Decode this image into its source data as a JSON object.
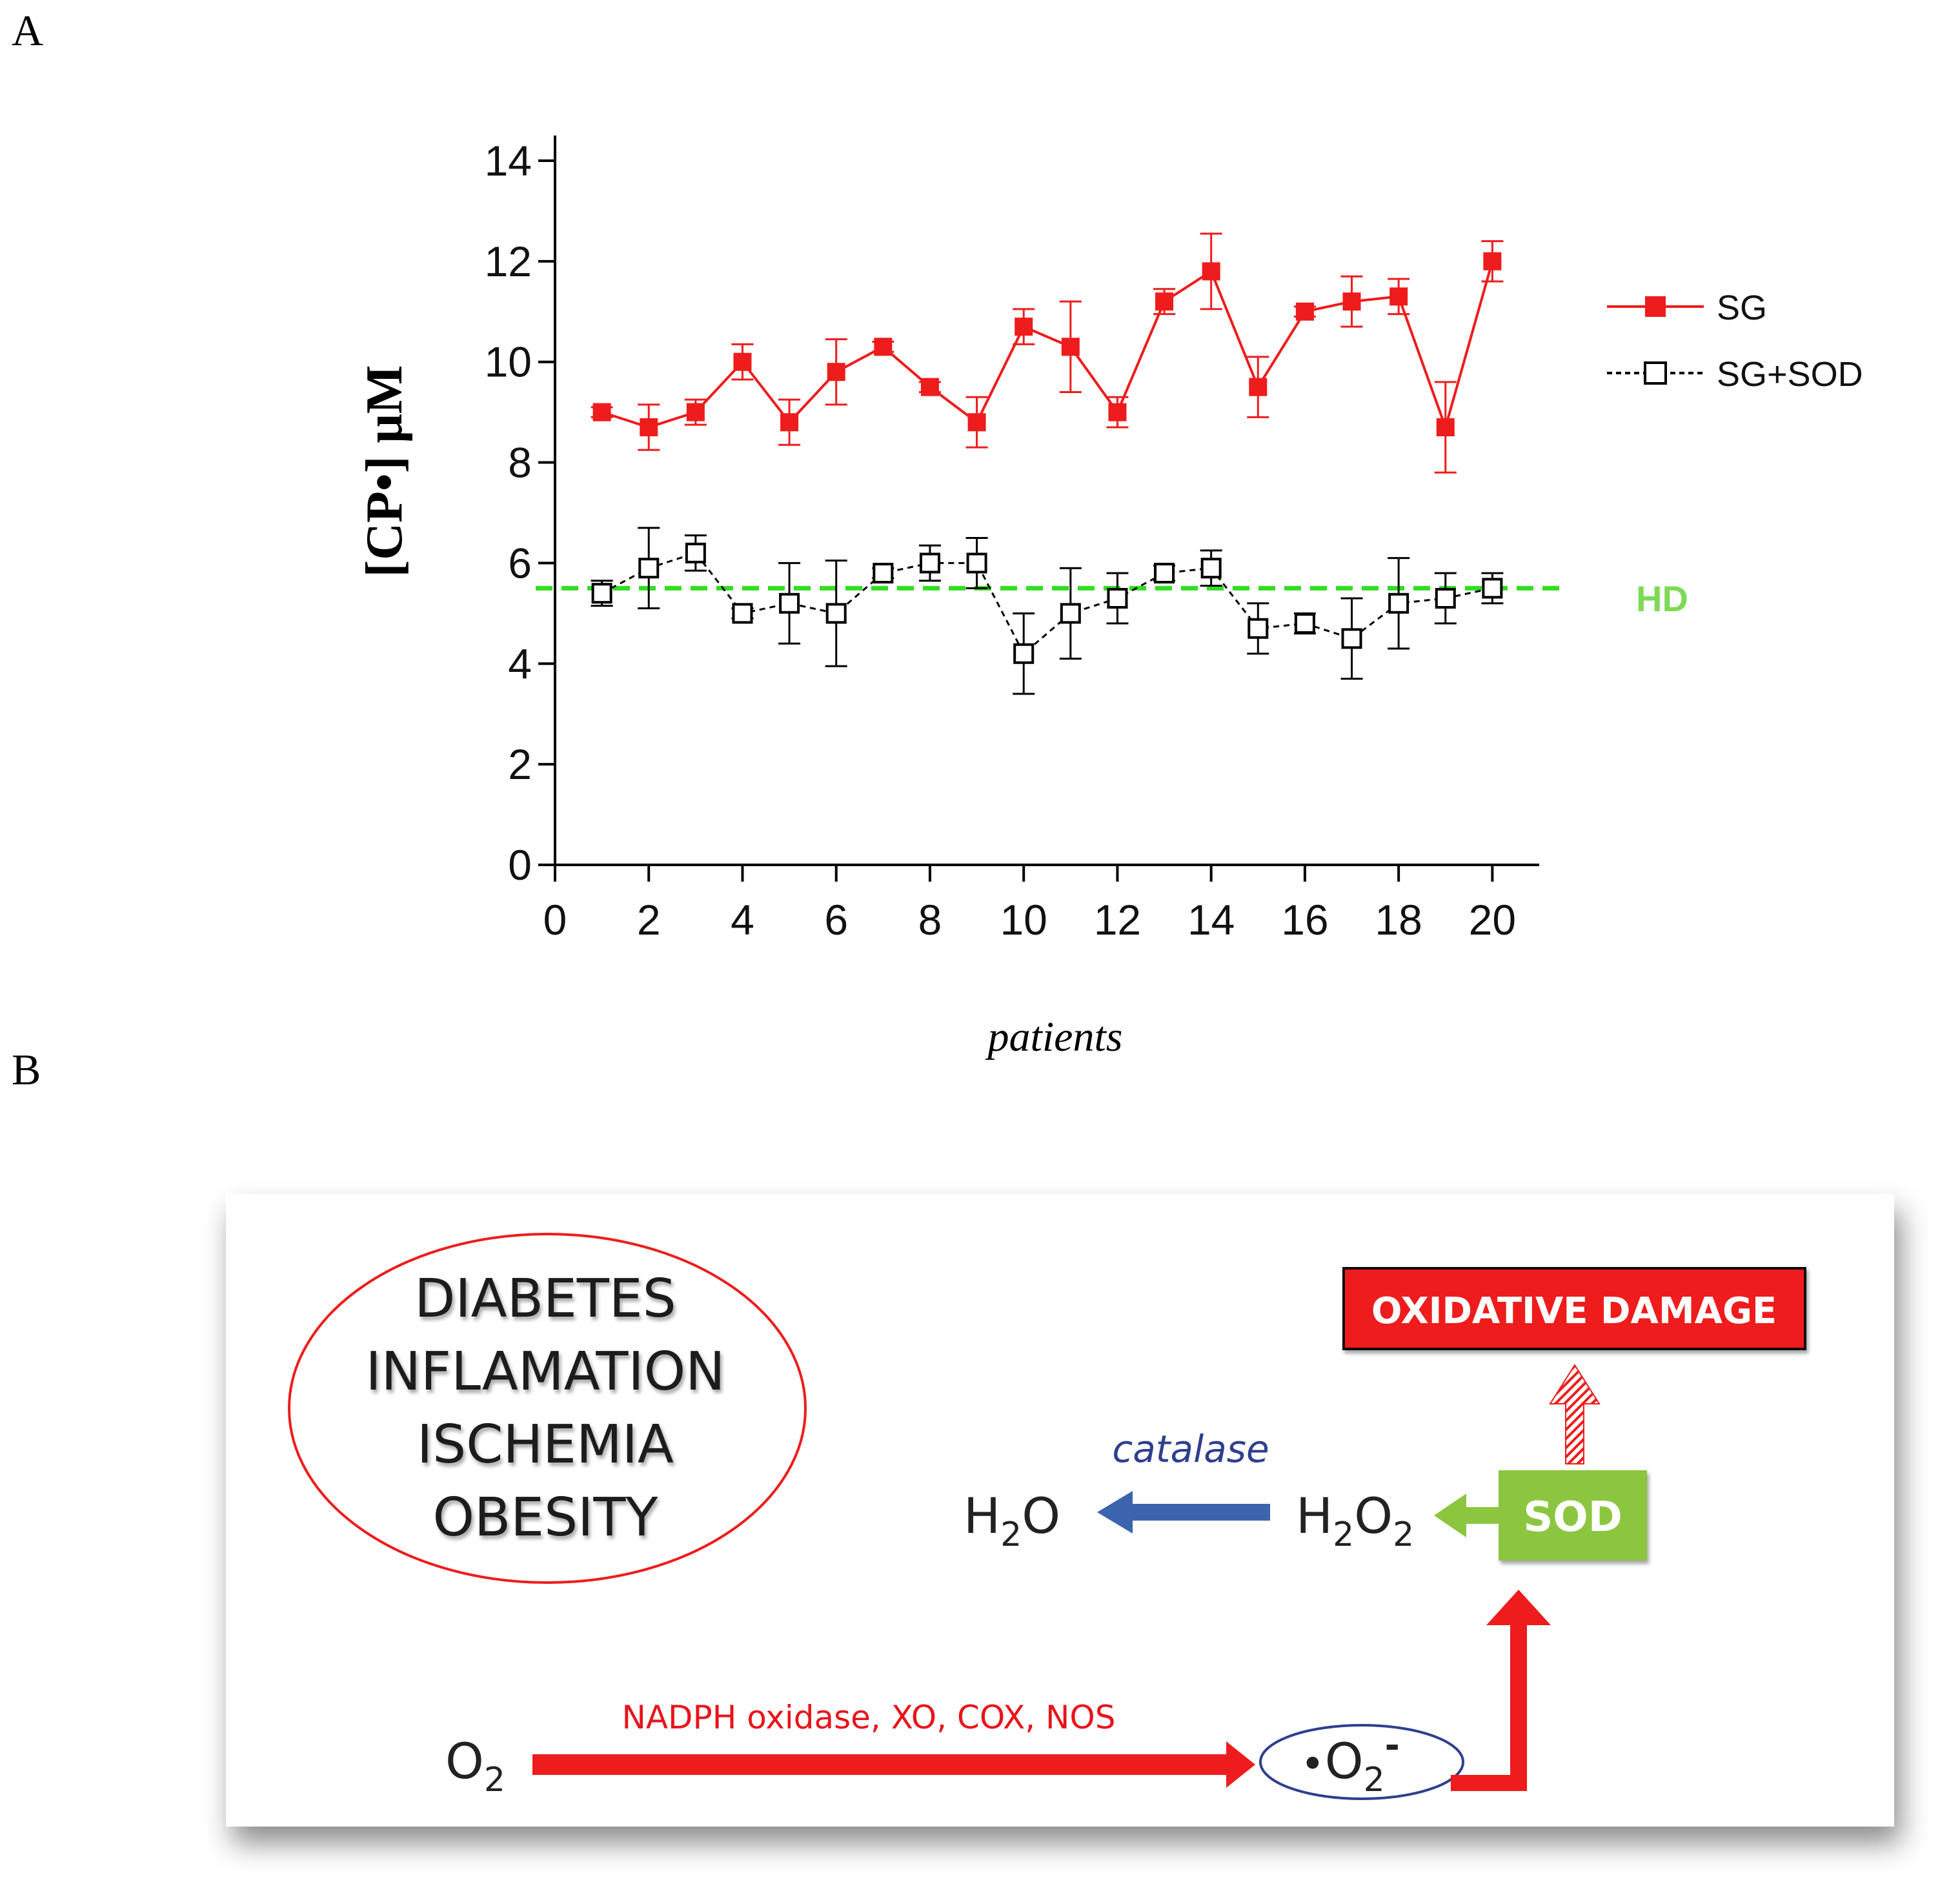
{
  "panels": {
    "a_label": "A",
    "b_label": "B"
  },
  "chart_data": {
    "type": "line",
    "xlabel": "patients",
    "ylabel": "[CP•] μM",
    "xlim": [
      0,
      21
    ],
    "ylim": [
      0,
      14.5
    ],
    "xticks": [
      0,
      2,
      4,
      6,
      8,
      10,
      12,
      14,
      16,
      18,
      20
    ],
    "yticks": [
      0,
      2,
      4,
      6,
      8,
      10,
      12,
      14
    ],
    "legend_position": "right",
    "grid": false,
    "x": [
      1,
      2,
      3,
      4,
      5,
      6,
      7,
      8,
      9,
      10,
      11,
      12,
      13,
      14,
      15,
      16,
      17,
      18,
      19,
      20
    ],
    "series": [
      {
        "name": "SG",
        "color": "#ee1c1c",
        "style": "solid",
        "marker": "filled-square",
        "values": [
          9.0,
          8.7,
          9.0,
          10.0,
          8.8,
          9.8,
          10.3,
          9.5,
          8.8,
          10.7,
          10.3,
          9.0,
          11.2,
          11.8,
          9.5,
          11.0,
          11.2,
          11.3,
          8.7,
          12.0
        ],
        "errors": [
          0.1,
          0.45,
          0.25,
          0.35,
          0.45,
          0.65,
          0.1,
          0.1,
          0.5,
          0.35,
          0.9,
          0.3,
          0.25,
          0.75,
          0.6,
          0.1,
          0.5,
          0.35,
          0.9,
          0.4
        ]
      },
      {
        "name": "SG+SOD",
        "color": "#000000",
        "style": "dashed",
        "marker": "open-square",
        "values": [
          5.4,
          5.9,
          6.2,
          5.0,
          5.2,
          5.0,
          5.8,
          6.0,
          6.0,
          4.2,
          5.0,
          5.3,
          5.8,
          5.9,
          4.7,
          4.8,
          4.5,
          5.2,
          5.3,
          5.5
        ],
        "errors": [
          0.25,
          0.8,
          0.35,
          0.1,
          0.8,
          1.05,
          0.1,
          0.35,
          0.5,
          0.8,
          0.9,
          0.5,
          0.15,
          0.35,
          0.5,
          0.2,
          0.8,
          0.9,
          0.5,
          0.3
        ]
      }
    ],
    "reference_line": {
      "label": "HD",
      "y": 5.5,
      "color": "#33dd22"
    }
  },
  "diagram": {
    "conditions": [
      "DIABETES",
      "INFLAMATION",
      "ISCHEMIA",
      "OBESITY"
    ],
    "damage_label": "OXIDATIVE DAMAGE",
    "sod_label": "SOD",
    "catalase_label": "catalase",
    "enzymes_label": "NADPH oxidase, XO, COX, NOS",
    "h2o": {
      "h": "H",
      "sub": "2",
      "o": "O"
    },
    "h2o2": {
      "h": "H",
      "sub1": "2",
      "o": "O",
      "sub2": "2"
    },
    "o2": {
      "o": "O",
      "sub": "2"
    },
    "superoxide": {
      "dot": "•",
      "o": "O",
      "sub": "2",
      "sup": "-"
    },
    "colors": {
      "red": "#ee1c1c",
      "green": "#8cc63f",
      "blue": "#3c64ae",
      "ellipse_blue": "#2e3f8f"
    }
  }
}
